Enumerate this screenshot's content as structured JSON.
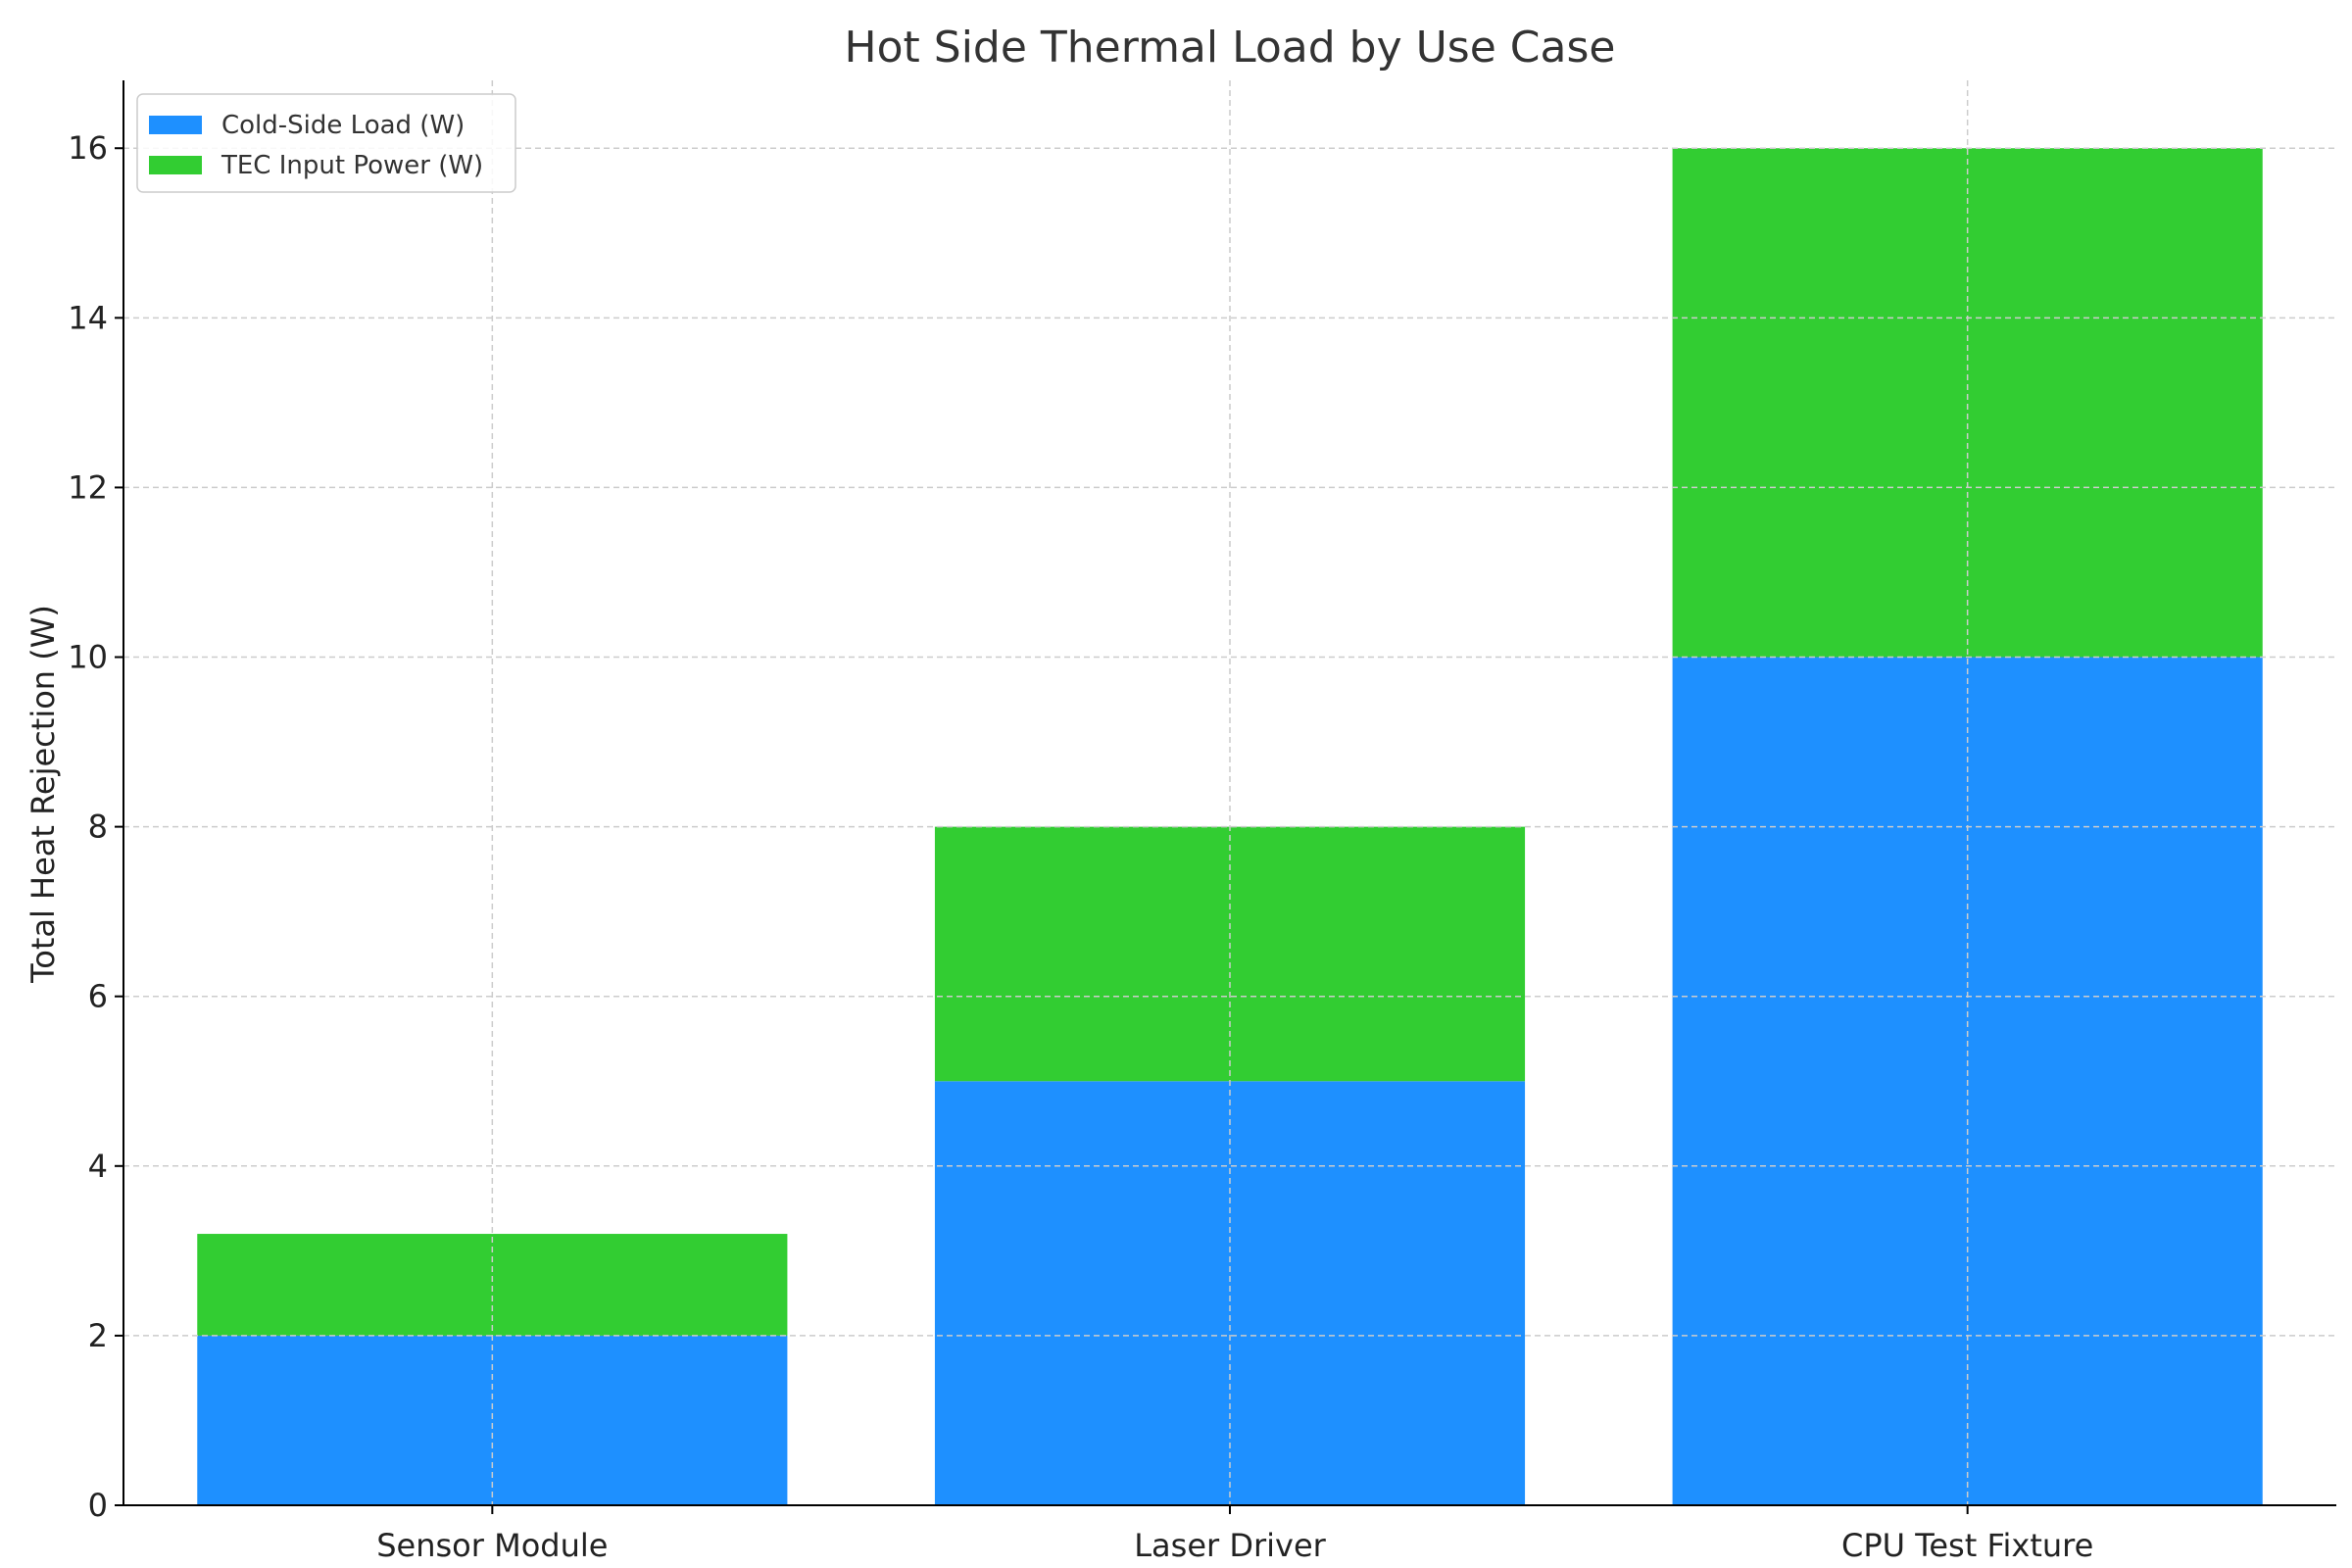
{
  "chart_data": {
    "type": "bar",
    "stacked": true,
    "title": "Hot Side Thermal Load by Use Case",
    "xlabel": "",
    "ylabel": "Total Heat Rejection (W)",
    "categories": [
      "Sensor Module",
      "Laser Driver",
      "CPU Test Fixture"
    ],
    "series": [
      {
        "name": "Cold-Side Load (W)",
        "color": "#1e90ff",
        "values": [
          2,
          5,
          10
        ]
      },
      {
        "name": "TEC Input Power (W)",
        "color": "#32cd32",
        "values": [
          1.2,
          3,
          6
        ]
      }
    ],
    "ylim": [
      0,
      16.8
    ],
    "yticks": [
      0,
      2,
      4,
      6,
      8,
      10,
      12,
      14,
      16
    ],
    "grid": true,
    "legend_position": "top-left"
  }
}
